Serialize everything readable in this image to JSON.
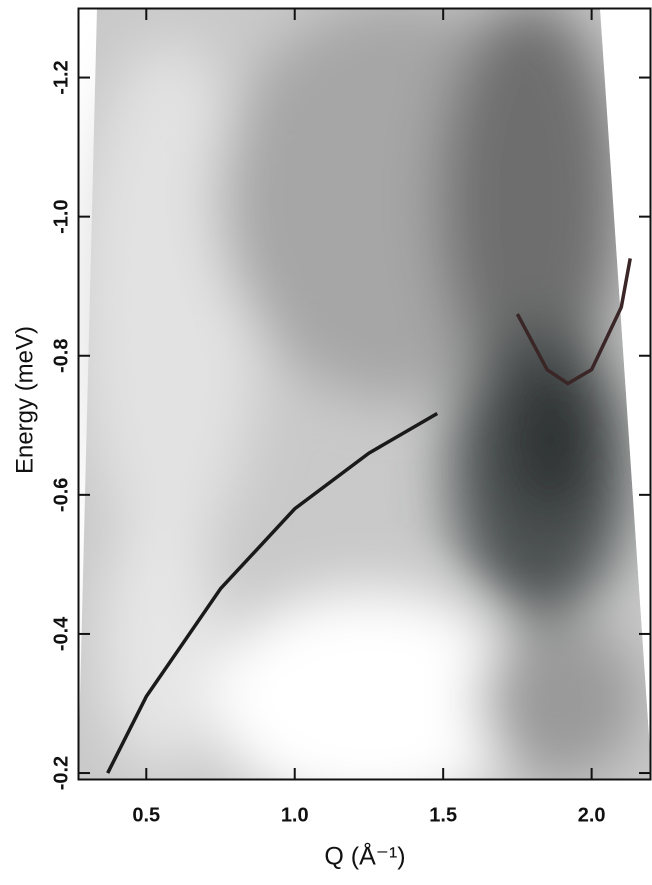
{
  "chart_data": {
    "type": "line",
    "x_label": "Q (Å⁻¹)",
    "y_label": "Energy (meV)",
    "x": [
      0.37,
      0.5,
      0.75,
      1.0,
      1.25,
      1.48,
      1.75,
      1.85,
      1.92,
      2.0,
      2.1,
      2.13
    ],
    "series": [
      {
        "color": "#1a1a1a",
        "values": [
          -0.2,
          -0.31,
          -0.465,
          -0.58,
          -0.66,
          -0.717,
          null,
          null,
          null,
          null,
          null,
          null
        ]
      },
      {
        "color": "#3a2626",
        "values": [
          null,
          null,
          null,
          null,
          null,
          null,
          -0.86,
          -0.78,
          -0.76,
          -0.78,
          -0.87,
          -0.94
        ]
      }
    ],
    "xlim": [
      0.27,
      2.2
    ],
    "ylim": [
      -0.19,
      -1.3
    ],
    "xticks": [
      0.5,
      {
        "value": 1,
        "label": "1.0"
      },
      1.5,
      {
        "value": 2,
        "label": "2.0"
      }
    ],
    "yticks": [
      -1.2,
      {
        "value": -1,
        "label": "-1.0"
      },
      -0.8,
      -0.6,
      -0.4,
      -0.2
    ]
  }
}
